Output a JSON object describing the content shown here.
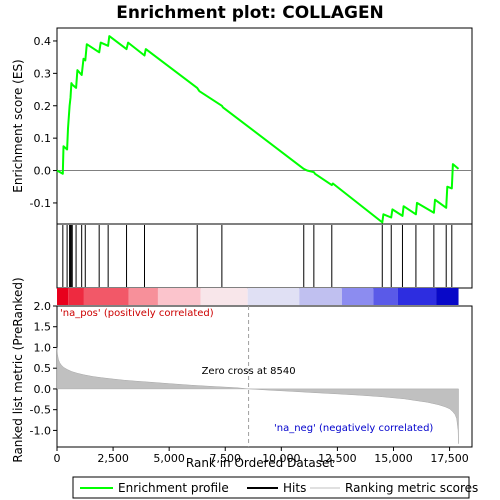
{
  "chart_data": {
    "type": "line",
    "title": "Enrichment plot: COLLAGEN",
    "top_panel": {
      "ylabel": "Enrichment score (ES)",
      "ylim": [
        -0.165,
        0.44
      ],
      "yticks": [
        -0.1,
        0.0,
        0.1,
        0.2,
        0.3,
        0.4
      ],
      "ytick_labels": [
        "-0.1",
        "0.0",
        "0.1",
        "0.2",
        "0.3",
        "0.4"
      ],
      "series": [
        {
          "name": "Enrichment profile",
          "color": "#00ff00",
          "x": [
            0,
            260,
            290,
            450,
            490,
            560,
            600,
            640,
            680,
            850,
            910,
            1100,
            1180,
            1260,
            1330,
            1880,
            1950,
            2280,
            2330,
            3100,
            3170,
            3900,
            3960,
            6250,
            6350,
            7350,
            7400,
            11000,
            11150,
            11450,
            11500,
            12250,
            12300,
            14500,
            14550,
            14900,
            14950,
            15400,
            15450,
            16000,
            16050,
            16800,
            16850,
            17350,
            17400,
            17600,
            17650,
            17900
          ],
          "y": [
            0.0,
            -0.01,
            0.075,
            0.065,
            0.13,
            0.2,
            0.225,
            0.27,
            0.265,
            0.255,
            0.31,
            0.295,
            0.345,
            0.34,
            0.39,
            0.365,
            0.395,
            0.385,
            0.415,
            0.375,
            0.395,
            0.355,
            0.375,
            0.255,
            0.245,
            0.2,
            0.195,
            0.005,
            0.0,
            -0.005,
            -0.01,
            -0.045,
            -0.04,
            -0.16,
            -0.135,
            -0.145,
            -0.12,
            -0.14,
            -0.11,
            -0.135,
            -0.1,
            -0.13,
            -0.09,
            -0.115,
            -0.05,
            -0.055,
            0.02,
            0.005
          ]
        }
      ]
    },
    "hits": [
      260,
      450,
      560,
      600,
      640,
      680,
      850,
      1100,
      1260,
      1880,
      2280,
      3100,
      3900,
      6250,
      7350,
      11000,
      11450,
      12250,
      14500,
      14900,
      15400,
      16000,
      16800,
      17350,
      17600
    ],
    "color_bar": {
      "colors": [
        "#e8001c",
        "#ee2a40",
        "#f25868",
        "#f7909a",
        "#fbc4cc",
        "#f8e6ea",
        "#e0e0f4",
        "#c0c0f0",
        "#8c8cf0",
        "#5a5ae8",
        "#2d2de0",
        "#0808c8"
      ],
      "breaks": [
        0,
        500,
        1200,
        3200,
        4500,
        6400,
        8500,
        10800,
        12700,
        14100,
        15200,
        16900,
        17900
      ]
    },
    "bottom_panel": {
      "ylabel": "Ranked list metric (PreRanked)",
      "xlabel": "Rank in Ordered Dataset",
      "ylim": [
        -1.4,
        2.0
      ],
      "yticks": [
        -1.0,
        -0.5,
        0.0,
        0.5,
        1.0,
        1.5,
        2.0
      ],
      "ytick_labels": [
        "-1.0",
        "-0.5",
        "0.0",
        "0.5",
        "1.0",
        "1.5",
        "2.0"
      ],
      "xlim": [
        0,
        18500
      ],
      "xticks": [
        0,
        2500,
        5000,
        7500,
        10000,
        12500,
        15000,
        17500
      ],
      "xtick_labels": [
        "0",
        "2,500",
        "5,000",
        "7,500",
        "10,000",
        "12,500",
        "15,000",
        "17,500"
      ],
      "metric": {
        "x": [
          0,
          20,
          60,
          120,
          200,
          300,
          450,
          650,
          900,
          1200,
          1600,
          2000,
          2500,
          3000,
          3500,
          4000,
          5000,
          6000,
          7000,
          8000,
          8540,
          9500,
          10500,
          11500,
          12500,
          13500,
          14500,
          15500,
          16000,
          16500,
          17000,
          17300,
          17500,
          17650,
          17750,
          17820,
          17880,
          17900
        ],
        "y": [
          1.0,
          0.85,
          0.72,
          0.63,
          0.57,
          0.52,
          0.47,
          0.42,
          0.38,
          0.34,
          0.3,
          0.27,
          0.24,
          0.21,
          0.19,
          0.17,
          0.13,
          0.09,
          0.06,
          0.03,
          0.0,
          -0.03,
          -0.06,
          -0.09,
          -0.12,
          -0.15,
          -0.19,
          -0.24,
          -0.28,
          -0.32,
          -0.38,
          -0.43,
          -0.48,
          -0.55,
          -0.62,
          -0.72,
          -1.0,
          -1.32
        ]
      },
      "zero_cross_label": "Zero cross at 8540",
      "zero_cross_x": 8540,
      "pos_label": "'na_pos' (positively correlated)",
      "neg_label": "'na_neg' (negatively correlated)",
      "pos_color": "#cc0000",
      "neg_color": "#0000cc"
    },
    "legend": {
      "placement": "bottom",
      "items": [
        {
          "label": "Enrichment profile",
          "color": "#00ff00"
        },
        {
          "label": "Hits",
          "color": "#000000"
        },
        {
          "label": "Ranking metric scores",
          "color": "#c0c0c0"
        }
      ]
    }
  }
}
